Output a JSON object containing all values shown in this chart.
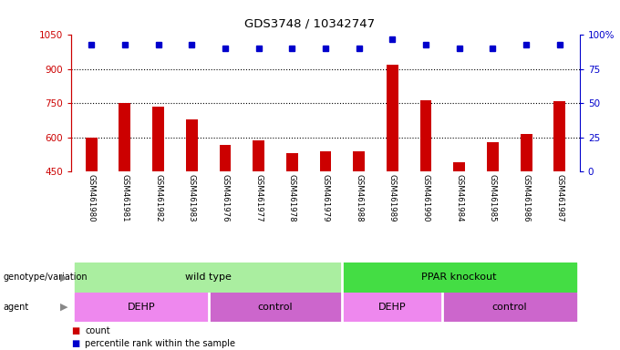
{
  "title": "GDS3748 / 10342747",
  "samples": [
    "GSM461980",
    "GSM461981",
    "GSM461982",
    "GSM461983",
    "GSM461976",
    "GSM461977",
    "GSM461978",
    "GSM461979",
    "GSM461988",
    "GSM461989",
    "GSM461990",
    "GSM461984",
    "GSM461985",
    "GSM461986",
    "GSM461987"
  ],
  "counts": [
    598,
    750,
    735,
    680,
    568,
    585,
    530,
    538,
    540,
    918,
    762,
    490,
    578,
    615,
    758
  ],
  "percentile_ranks": [
    93,
    93,
    93,
    93,
    90,
    90,
    90,
    90,
    90,
    97,
    93,
    90,
    90,
    93,
    93
  ],
  "ylim_left": [
    450,
    1050
  ],
  "ylim_right": [
    0,
    100
  ],
  "yticks_left": [
    450,
    600,
    750,
    900,
    1050
  ],
  "yticks_right": [
    0,
    25,
    50,
    75,
    100
  ],
  "bar_color": "#cc0000",
  "dot_color": "#0000cc",
  "background_color": "#ffffff",
  "grid_color": "#000000",
  "genotype_groups": [
    {
      "label": "wild type",
      "start": 0,
      "end": 8,
      "color": "#aaeea0"
    },
    {
      "label": "PPAR knockout",
      "start": 8,
      "end": 15,
      "color": "#44dd44"
    }
  ],
  "agent_groups": [
    {
      "label": "DEHP",
      "start": 0,
      "end": 4,
      "color": "#ee88ee"
    },
    {
      "label": "control",
      "start": 4,
      "end": 8,
      "color": "#cc66cc"
    },
    {
      "label": "DEHP",
      "start": 8,
      "end": 11,
      "color": "#ee88ee"
    },
    {
      "label": "control",
      "start": 11,
      "end": 15,
      "color": "#cc66cc"
    }
  ],
  "legend_count_color": "#cc0000",
  "legend_dot_color": "#0000cc",
  "left_axis_color": "#cc0000",
  "right_axis_color": "#0000cc",
  "sample_box_color": "#cccccc",
  "sample_box_border": "#888888"
}
